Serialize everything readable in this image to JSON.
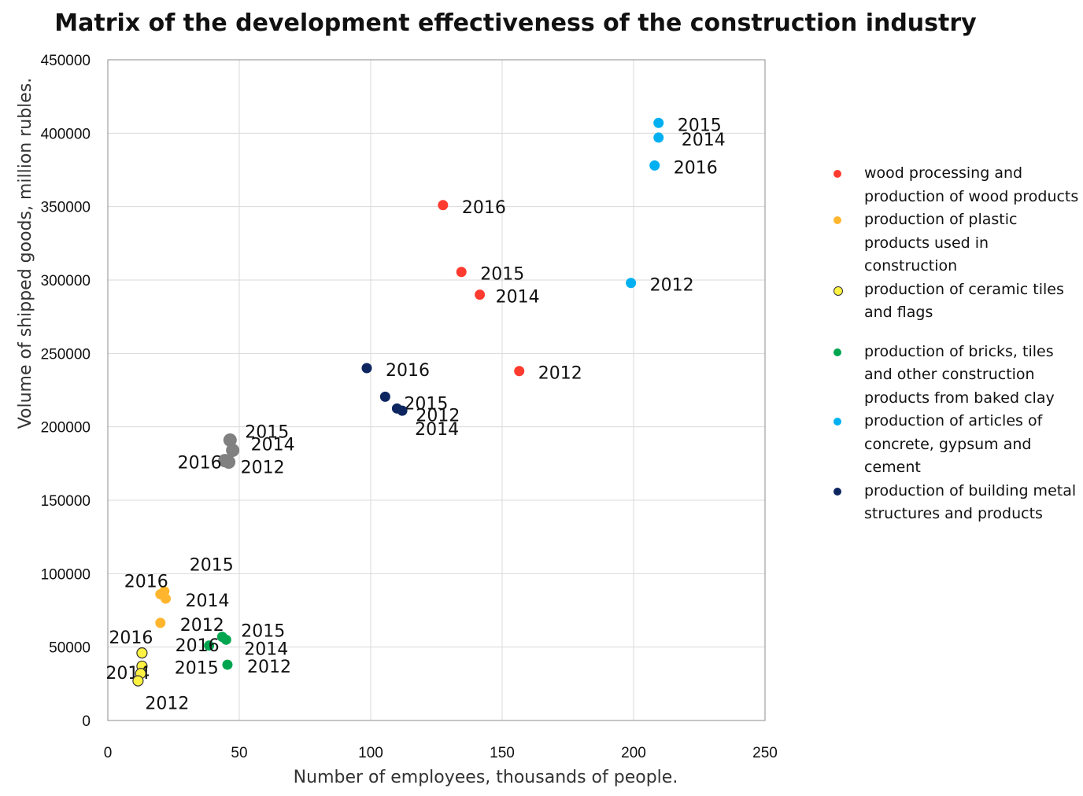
{
  "chart_data": {
    "type": "scatter",
    "title": "Matrix of the development effectiveness of the construction industry",
    "xlabel": "Number of employees, thousands of people.",
    "ylabel": "Volume of shipped goods, million rubles.",
    "xlim": [
      0,
      250
    ],
    "ylim": [
      0,
      450000
    ],
    "xticks": [
      0,
      50,
      100,
      150,
      200,
      250
    ],
    "yticks": [
      0,
      50000,
      100000,
      150000,
      200000,
      250000,
      300000,
      350000,
      400000,
      450000
    ],
    "grid": true,
    "legend_position": "right",
    "series": [
      {
        "name": "wood processing and production of wood products",
        "color": "#FF3B2F",
        "marker_fill": "#FF3B2F",
        "marker_stroke": "#FF3B2F",
        "points": [
          {
            "x": 127.5,
            "y": 351000,
            "label": "2016"
          },
          {
            "x": 134.5,
            "y": 305500,
            "label": "2015"
          },
          {
            "x": 141.5,
            "y": 290000,
            "label": "2014"
          },
          {
            "x": 156.5,
            "y": 238000,
            "label": "2012"
          }
        ]
      },
      {
        "name": "production of plastic products used in construction",
        "color": "#FFB62E",
        "marker_fill": "#FFB62E",
        "marker_stroke": "#FFB62E",
        "points": [
          {
            "x": 21.5,
            "y": 88000,
            "label": "2015"
          },
          {
            "x": 20.0,
            "y": 86000,
            "label": "2016"
          },
          {
            "x": 22.0,
            "y": 83000,
            "label": "2014"
          },
          {
            "x": 20.0,
            "y": 66500,
            "label": "2012"
          }
        ]
      },
      {
        "name": "production of ceramic tiles and flags",
        "color": "#FFF242",
        "marker_fill": "#FFF242",
        "marker_stroke": "#333333",
        "points": [
          {
            "x": 13.0,
            "y": 46000,
            "label": "2016"
          },
          {
            "x": 13.0,
            "y": 37000,
            "label": "2014"
          },
          {
            "x": 12.5,
            "y": 32000,
            "label": "2015"
          },
          {
            "x": 11.5,
            "y": 27000,
            "label": "2012"
          }
        ]
      },
      {
        "name": "production of bricks, tiles and other construction products from baked clay",
        "color": "#00A550",
        "marker_fill": "#00A550",
        "marker_stroke": "#00A550",
        "points": [
          {
            "x": 43.5,
            "y": 57000,
            "label": "2015"
          },
          {
            "x": 45.0,
            "y": 55000,
            "label": "2014"
          },
          {
            "x": 38.5,
            "y": 51000,
            "label": "2016"
          },
          {
            "x": 45.5,
            "y": 38000,
            "label": "2012"
          }
        ]
      },
      {
        "name": "production of articles of concrete, gypsum and cement",
        "color": "#00B0F0",
        "marker_fill": "#00B0F0",
        "marker_stroke": "#00B0F0",
        "points": [
          {
            "x": 209.5,
            "y": 407000,
            "label": "2015"
          },
          {
            "x": 209.5,
            "y": 397000,
            "label": "2014"
          },
          {
            "x": 208.0,
            "y": 378000,
            "label": "2016"
          },
          {
            "x": 199.0,
            "y": 298000,
            "label": "2012"
          }
        ]
      },
      {
        "name": "production of building metal structures and products",
        "color": "#0D2660",
        "marker_fill": "#0D2660",
        "marker_stroke": "#0D2660",
        "points": [
          {
            "x": 98.5,
            "y": 240000,
            "label": "2016"
          },
          {
            "x": 105.5,
            "y": 220500,
            "label": "2015"
          },
          {
            "x": 110.0,
            "y": 212500,
            "label": "2012"
          },
          {
            "x": 112.0,
            "y": 211000,
            "label": "2014"
          }
        ]
      },
      {
        "name": "",
        "color": "#808080",
        "marker_fill": "#808080",
        "marker_stroke": "#808080",
        "points": [
          {
            "x": 46.5,
            "y": 191000,
            "label": "2015"
          },
          {
            "x": 47.5,
            "y": 184000,
            "label": "2014"
          },
          {
            "x": 44.5,
            "y": 177000,
            "label": "2016"
          },
          {
            "x": 46.0,
            "y": 176000,
            "label": "2012"
          }
        ]
      }
    ]
  }
}
